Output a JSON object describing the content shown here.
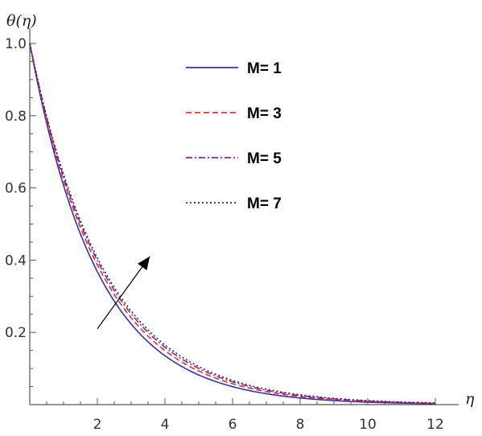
{
  "chart_data": {
    "type": "line",
    "title": "",
    "xlabel": "η",
    "ylabel": "θ(η)",
    "xlim": [
      0,
      12.5
    ],
    "ylim": [
      0,
      1.02
    ],
    "x_ticks": [
      "2",
      "4",
      "6",
      "8",
      "10",
      "12"
    ],
    "y_ticks": [
      "0.2",
      "0.4",
      "0.6",
      "0.8",
      "1.0"
    ],
    "x_tick_values": [
      2,
      4,
      6,
      8,
      10,
      12
    ],
    "y_tick_values": [
      0.2,
      0.4,
      0.6,
      0.8,
      1.0
    ],
    "grid": false,
    "legend_position": "top-center",
    "annotation": "arrow indicating increase with M",
    "series": [
      {
        "name": "M= 1",
        "color": "#3333aa",
        "dash": "solid",
        "decay": 0.5
      },
      {
        "name": "M= 3",
        "color": "#e03030",
        "dash": "dashed",
        "decay": 0.475
      },
      {
        "name": "M= 5",
        "color": "#8a2a8a",
        "dash": "dashdot",
        "decay": 0.46
      },
      {
        "name": "M= 7",
        "color": "#2a2a66",
        "dash": "dotted",
        "decay": 0.45
      }
    ],
    "x": [
      0,
      0.5,
      1,
      1.5,
      2,
      2.5,
      3,
      3.5,
      4,
      4.5,
      5,
      5.5,
      6,
      6.5,
      7,
      7.5,
      8,
      8.5,
      9,
      9.5,
      10,
      10.5,
      11,
      11.5,
      12
    ]
  }
}
